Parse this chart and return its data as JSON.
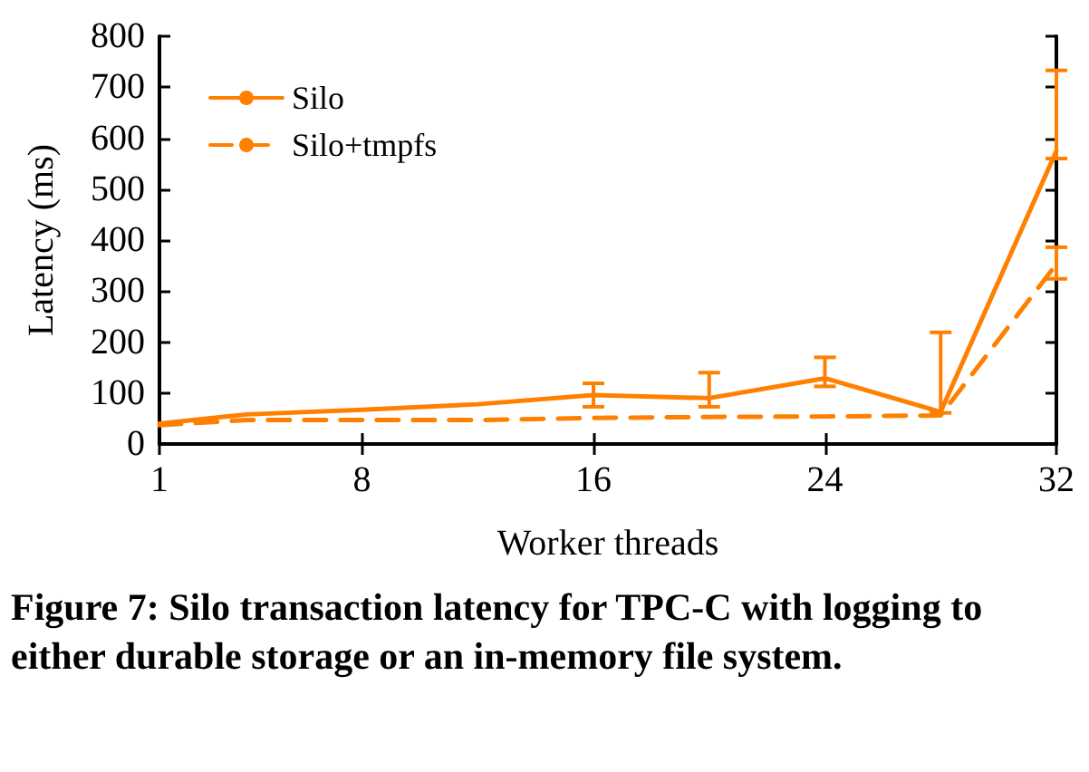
{
  "chart_data": {
    "type": "line",
    "xlabel": "Worker threads",
    "ylabel": "Latency (ms)",
    "x": [
      1,
      4,
      8,
      12,
      16,
      20,
      24,
      28,
      32
    ],
    "series": [
      {
        "name": "Silo",
        "color": "#ff8000",
        "line_style": "solid",
        "values": [
          40,
          58,
          67,
          78,
          96,
          90,
          129,
          63,
          575
        ],
        "errors": [
          null,
          null,
          null,
          null,
          [
            73,
            119
          ],
          [
            73,
            140
          ],
          [
            113,
            170
          ],
          [
            61,
            219
          ],
          [
            560,
            733
          ]
        ]
      },
      {
        "name": "Silo+tmpfs",
        "color": "#ff8000",
        "line_style": "dashed",
        "values": [
          37,
          47,
          47,
          47,
          51,
          53,
          54,
          56,
          353
        ],
        "errors": [
          null,
          null,
          null,
          null,
          null,
          null,
          null,
          null,
          [
            324,
            386
          ]
        ]
      }
    ],
    "xlim": [
      1,
      32
    ],
    "xticks": [
      1,
      8,
      16,
      24,
      32
    ],
    "ylim": [
      0,
      800
    ],
    "yticks": [
      0,
      100,
      200,
      300,
      400,
      500,
      600,
      700,
      800
    ],
    "grid": false,
    "legend": "top left",
    "marker": "none",
    "annotations": [
      "Figure 7: Silo transaction latency for TPC-C with logging to either durable storage or an in-memory file system."
    ]
  }
}
